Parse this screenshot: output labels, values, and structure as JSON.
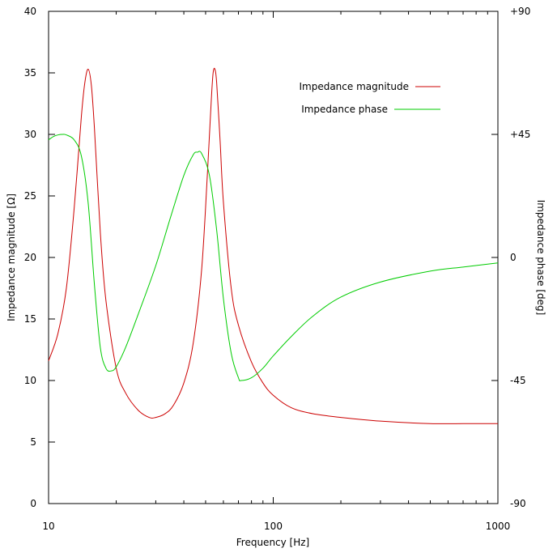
{
  "chart_data": {
    "type": "line",
    "xscale": "log",
    "xlim": [
      10,
      1000
    ],
    "x_ticks": [
      10,
      100,
      1000
    ],
    "x_tick_labels": [
      "10",
      "100",
      "1000"
    ],
    "xlabel": "Frequency [Hz]",
    "y_left": {
      "label": "Impedance magnitude [Ω]",
      "lim": [
        0,
        40
      ],
      "ticks": [
        0,
        5,
        10,
        15,
        20,
        25,
        30,
        35,
        40
      ],
      "tick_labels": [
        "0",
        "5",
        "10",
        "15",
        "20",
        "25",
        "30",
        "35",
        "40"
      ]
    },
    "y_right": {
      "label": "Impedance phase [deg]",
      "lim": [
        -90,
        90
      ],
      "ticks": [
        -90,
        -45,
        0,
        45,
        90
      ],
      "tick_labels": [
        "-90",
        "-45",
        "0",
        "+45",
        "+90"
      ]
    },
    "grid": false,
    "legend_position": "top-right",
    "series": [
      {
        "name": "Impedance magnitude",
        "axis": "left",
        "color": "#cc0000",
        "x": [
          10,
          11,
          12,
          13,
          14,
          14.5,
          15,
          15.5,
          16,
          17,
          18,
          20,
          22,
          25,
          28,
          30,
          33,
          36,
          40,
          44,
          48,
          51,
          53,
          54,
          55,
          56,
          58,
          60,
          65,
          70,
          80,
          90,
          100,
          120,
          150,
          200,
          300,
          500,
          700,
          1000
        ],
        "values": [
          11.6,
          13.8,
          17.5,
          24.0,
          31.5,
          34.2,
          35.3,
          34.0,
          30.5,
          22.0,
          16.5,
          11.0,
          9.0,
          7.6,
          7.0,
          7.0,
          7.3,
          8.0,
          9.8,
          13.0,
          19.0,
          27.0,
          32.8,
          35.0,
          35.3,
          34.2,
          29.5,
          24.5,
          17.5,
          14.5,
          11.5,
          9.8,
          8.8,
          7.8,
          7.3,
          7.0,
          6.7,
          6.5,
          6.5,
          6.5
        ]
      },
      {
        "name": "Impedance phase",
        "axis": "right",
        "color": "#00cc00",
        "x": [
          10,
          10.5,
          11,
          11.5,
          12,
          13,
          14,
          15,
          16,
          17,
          18,
          19,
          20,
          22,
          25,
          30,
          35,
          40,
          44,
          46,
          48,
          52,
          56,
          60,
          65,
          70,
          72,
          80,
          90,
          100,
          120,
          150,
          200,
          300,
          500,
          700,
          1000
        ],
        "values": [
          43.0,
          44.2,
          44.8,
          45.0,
          44.8,
          43.0,
          37.0,
          20.0,
          -10.0,
          -33.0,
          -40.5,
          -41.5,
          -40.0,
          -33.0,
          -21.0,
          -3.0,
          15.0,
          30.0,
          37.5,
          38.5,
          38.0,
          30.0,
          10.0,
          -15.0,
          -35.0,
          -44.0,
          -45.0,
          -44.0,
          -40.5,
          -36.0,
          -29.0,
          -21.5,
          -14.5,
          -9.0,
          -5.0,
          -3.5,
          -2.0
        ]
      }
    ]
  }
}
